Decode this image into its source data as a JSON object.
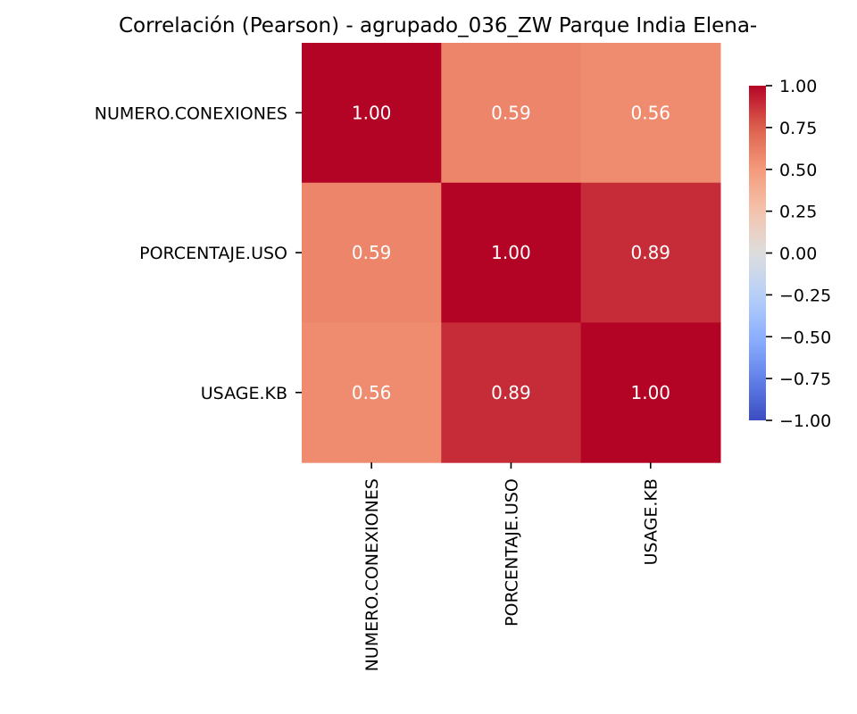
{
  "chart_data": {
    "type": "heatmap",
    "title": "Correlación (Pearson) - agrupado_036_ZW Parque India Elena-",
    "x_categories": [
      "NUMERO.CONEXIONES",
      "PORCENTAJE.USO",
      "USAGE.KB"
    ],
    "y_categories": [
      "NUMERO.CONEXIONES",
      "PORCENTAJE.USO",
      "USAGE.KB"
    ],
    "values": [
      [
        1.0,
        0.59,
        0.56
      ],
      [
        0.59,
        1.0,
        0.89
      ],
      [
        0.56,
        0.89,
        1.0
      ]
    ],
    "value_labels": [
      [
        "1.00",
        "0.59",
        "0.56"
      ],
      [
        "0.59",
        "1.00",
        "0.89"
      ],
      [
        "0.56",
        "0.89",
        "1.00"
      ]
    ],
    "colormap": "coolwarm",
    "vmin": -1.0,
    "vmax": 1.0,
    "colorbar_ticks": [
      1.0,
      0.75,
      0.5,
      0.25,
      0.0,
      -0.25,
      -0.5,
      -0.75,
      -1.0
    ],
    "colorbar_tick_labels": [
      "1.00",
      "0.75",
      "0.50",
      "0.25",
      "0.00",
      "−0.25",
      "−0.50",
      "−0.75",
      "−1.00"
    ],
    "colors": {
      "cold": "#3b4cc0",
      "neutral": "#dddddd",
      "warm": "#b40426",
      "annotation_text": "#ffffff"
    }
  }
}
